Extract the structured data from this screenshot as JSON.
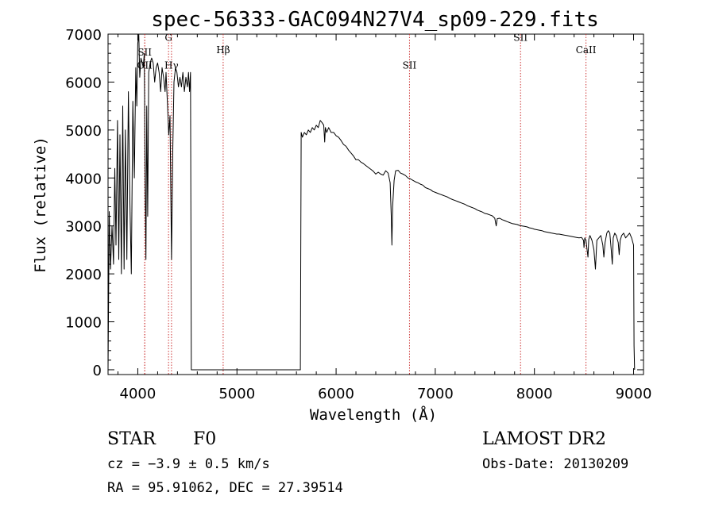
{
  "chart_data": {
    "type": "line",
    "title": "spec-56333-GAC094N27V4_sp09-229.fits",
    "xlabel": "Wavelength (Å)",
    "ylabel": "Flux (relative)",
    "xlim": [
      3700,
      9100
    ],
    "ylim": [
      -100,
      7000
    ],
    "x_ticks": [
      4000,
      5000,
      6000,
      7000,
      8000,
      9000
    ],
    "y_ticks": [
      0,
      1000,
      2000,
      3000,
      4000,
      5000,
      6000,
      7000
    ],
    "grid": false,
    "line_colors": {
      "spectrum": "#000000",
      "markers": "#cc3333"
    },
    "lines": [
      {
        "label": "OII",
        "x": 4070,
        "label_y": 6280
      },
      {
        "label": "SII",
        "x": 4070,
        "label_y": 6550
      },
      {
        "label": "G",
        "x": 4310,
        "label_y": 6860
      },
      {
        "label": "Hγ",
        "x": 4340,
        "label_y": 6280
      },
      {
        "label": "Hβ",
        "x": 4861,
        "label_y": 6600
      },
      {
        "label": "SII",
        "x": 6740,
        "label_y": 6280
      },
      {
        "label": "SII",
        "x": 7860,
        "label_y": 6860
      },
      {
        "label": "CaII",
        "x": 8520,
        "label_y": 6600
      }
    ],
    "series": [
      {
        "values": [
          [
            3700,
            0
          ],
          [
            3712,
            3300
          ],
          [
            3725,
            2100
          ],
          [
            3740,
            3000
          ],
          [
            3755,
            2200
          ],
          [
            3768,
            4200
          ],
          [
            3780,
            2600
          ],
          [
            3795,
            5200
          ],
          [
            3808,
            2300
          ],
          [
            3820,
            4900
          ],
          [
            3835,
            2000
          ],
          [
            3848,
            5500
          ],
          [
            3862,
            2100
          ],
          [
            3875,
            5000
          ],
          [
            3890,
            2300
          ],
          [
            3905,
            5800
          ],
          [
            3920,
            3500
          ],
          [
            3935,
            2000
          ],
          [
            3950,
            5600
          ],
          [
            3965,
            4000
          ],
          [
            3980,
            6300
          ],
          [
            3990,
            5500
          ],
          [
            4000,
            6800
          ],
          [
            4010,
            7000
          ],
          [
            4020,
            6100
          ],
          [
            4032,
            6500
          ],
          [
            4045,
            6400
          ],
          [
            4055,
            6300
          ],
          [
            4065,
            6600
          ],
          [
            4075,
            3800
          ],
          [
            4082,
            2300
          ],
          [
            4090,
            5500
          ],
          [
            4100,
            3200
          ],
          [
            4110,
            6200
          ],
          [
            4125,
            6400
          ],
          [
            4140,
            6500
          ],
          [
            4155,
            6400
          ],
          [
            4170,
            6000
          ],
          [
            4185,
            6300
          ],
          [
            4200,
            6400
          ],
          [
            4215,
            6200
          ],
          [
            4230,
            5800
          ],
          [
            4245,
            6300
          ],
          [
            4260,
            6100
          ],
          [
            4275,
            5800
          ],
          [
            4285,
            6200
          ],
          [
            4300,
            5500
          ],
          [
            4312,
            4900
          ],
          [
            4325,
            5300
          ],
          [
            4340,
            2300
          ],
          [
            4352,
            4500
          ],
          [
            4365,
            6000
          ],
          [
            4380,
            6300
          ],
          [
            4395,
            6200
          ],
          [
            4410,
            5900
          ],
          [
            4425,
            6100
          ],
          [
            4440,
            5900
          ],
          [
            4455,
            6200
          ],
          [
            4470,
            5800
          ],
          [
            4485,
            6100
          ],
          [
            4500,
            5900
          ],
          [
            4512,
            6200
          ],
          [
            4522,
            5800
          ],
          [
            4532,
            6200
          ],
          [
            4540,
            0
          ],
          [
            5640,
            0
          ],
          [
            5648,
            4950
          ],
          [
            5660,
            4850
          ],
          [
            5680,
            4950
          ],
          [
            5700,
            4900
          ],
          [
            5720,
            5000
          ],
          [
            5740,
            4950
          ],
          [
            5760,
            5050
          ],
          [
            5780,
            5000
          ],
          [
            5800,
            5100
          ],
          [
            5820,
            5050
          ],
          [
            5840,
            5200
          ],
          [
            5860,
            5150
          ],
          [
            5875,
            5100
          ],
          [
            5885,
            4750
          ],
          [
            5892,
            5050
          ],
          [
            5905,
            4950
          ],
          [
            5925,
            5050
          ],
          [
            5950,
            4950
          ],
          [
            5975,
            4950
          ],
          [
            6000,
            4880
          ],
          [
            6025,
            4850
          ],
          [
            6050,
            4780
          ],
          [
            6075,
            4700
          ],
          [
            6100,
            4660
          ],
          [
            6125,
            4580
          ],
          [
            6150,
            4520
          ],
          [
            6175,
            4460
          ],
          [
            6200,
            4380
          ],
          [
            6225,
            4380
          ],
          [
            6250,
            4330
          ],
          [
            6275,
            4300
          ],
          [
            6300,
            4260
          ],
          [
            6325,
            4220
          ],
          [
            6350,
            4180
          ],
          [
            6375,
            4140
          ],
          [
            6400,
            4080
          ],
          [
            6425,
            4120
          ],
          [
            6450,
            4080
          ],
          [
            6475,
            4060
          ],
          [
            6500,
            4150
          ],
          [
            6525,
            4100
          ],
          [
            6545,
            3900
          ],
          [
            6556,
            3200
          ],
          [
            6563,
            2600
          ],
          [
            6570,
            3400
          ],
          [
            6585,
            3950
          ],
          [
            6600,
            4150
          ],
          [
            6625,
            4160
          ],
          [
            6650,
            4100
          ],
          [
            6675,
            4080
          ],
          [
            6700,
            4050
          ],
          [
            6725,
            4000
          ],
          [
            6750,
            3980
          ],
          [
            6775,
            3950
          ],
          [
            6800,
            3920
          ],
          [
            6825,
            3900
          ],
          [
            6850,
            3870
          ],
          [
            6875,
            3850
          ],
          [
            6900,
            3800
          ],
          [
            6925,
            3780
          ],
          [
            6950,
            3760
          ],
          [
            6975,
            3720
          ],
          [
            7000,
            3700
          ],
          [
            7025,
            3680
          ],
          [
            7050,
            3660
          ],
          [
            7075,
            3640
          ],
          [
            7100,
            3620
          ],
          [
            7125,
            3600
          ],
          [
            7150,
            3570
          ],
          [
            7175,
            3550
          ],
          [
            7200,
            3530
          ],
          [
            7225,
            3510
          ],
          [
            7250,
            3490
          ],
          [
            7275,
            3470
          ],
          [
            7300,
            3450
          ],
          [
            7325,
            3420
          ],
          [
            7350,
            3400
          ],
          [
            7375,
            3380
          ],
          [
            7400,
            3360
          ],
          [
            7425,
            3330
          ],
          [
            7450,
            3310
          ],
          [
            7475,
            3290
          ],
          [
            7500,
            3260
          ],
          [
            7525,
            3250
          ],
          [
            7550,
            3230
          ],
          [
            7575,
            3210
          ],
          [
            7600,
            3160
          ],
          [
            7615,
            3000
          ],
          [
            7625,
            3150
          ],
          [
            7650,
            3160
          ],
          [
            7675,
            3130
          ],
          [
            7700,
            3110
          ],
          [
            7725,
            3090
          ],
          [
            7750,
            3070
          ],
          [
            7775,
            3050
          ],
          [
            7800,
            3040
          ],
          [
            7825,
            3030
          ],
          [
            7850,
            3010
          ],
          [
            7875,
            3000
          ],
          [
            7900,
            2990
          ],
          [
            7925,
            2980
          ],
          [
            7950,
            2960
          ],
          [
            7975,
            2950
          ],
          [
            8000,
            2930
          ],
          [
            8025,
            2920
          ],
          [
            8050,
            2910
          ],
          [
            8075,
            2900
          ],
          [
            8100,
            2880
          ],
          [
            8125,
            2870
          ],
          [
            8150,
            2860
          ],
          [
            8175,
            2850
          ],
          [
            8200,
            2840
          ],
          [
            8225,
            2830
          ],
          [
            8250,
            2830
          ],
          [
            8275,
            2820
          ],
          [
            8300,
            2810
          ],
          [
            8325,
            2800
          ],
          [
            8350,
            2790
          ],
          [
            8375,
            2780
          ],
          [
            8400,
            2770
          ],
          [
            8425,
            2760
          ],
          [
            8450,
            2750
          ],
          [
            8475,
            2760
          ],
          [
            8495,
            2700
          ],
          [
            8500,
            2550
          ],
          [
            8508,
            2750
          ],
          [
            8520,
            2700
          ],
          [
            8540,
            2350
          ],
          [
            8548,
            2720
          ],
          [
            8560,
            2800
          ],
          [
            8580,
            2700
          ],
          [
            8600,
            2500
          ],
          [
            8615,
            2100
          ],
          [
            8630,
            2700
          ],
          [
            8650,
            2750
          ],
          [
            8670,
            2800
          ],
          [
            8690,
            2600
          ],
          [
            8700,
            2350
          ],
          [
            8712,
            2650
          ],
          [
            8730,
            2850
          ],
          [
            8745,
            2900
          ],
          [
            8760,
            2850
          ],
          [
            8775,
            2500
          ],
          [
            8785,
            2200
          ],
          [
            8795,
            2750
          ],
          [
            8810,
            2850
          ],
          [
            8825,
            2800
          ],
          [
            8845,
            2650
          ],
          [
            8855,
            2400
          ],
          [
            8865,
            2700
          ],
          [
            8880,
            2800
          ],
          [
            8900,
            2850
          ],
          [
            8920,
            2750
          ],
          [
            8940,
            2800
          ],
          [
            8960,
            2850
          ],
          [
            8980,
            2750
          ],
          [
            9000,
            2600
          ],
          [
            9005,
            500
          ],
          [
            9010,
            0
          ]
        ]
      }
    ]
  },
  "footer": {
    "object_class": "STAR",
    "subclass": "F0",
    "survey": "LAMOST DR2",
    "redshift": "cz = −3.9 ± 0.5 km/s",
    "obs_date": "Obs-Date: 20130209",
    "coords": "RA =  95.91062, DEC =  27.39514"
  }
}
